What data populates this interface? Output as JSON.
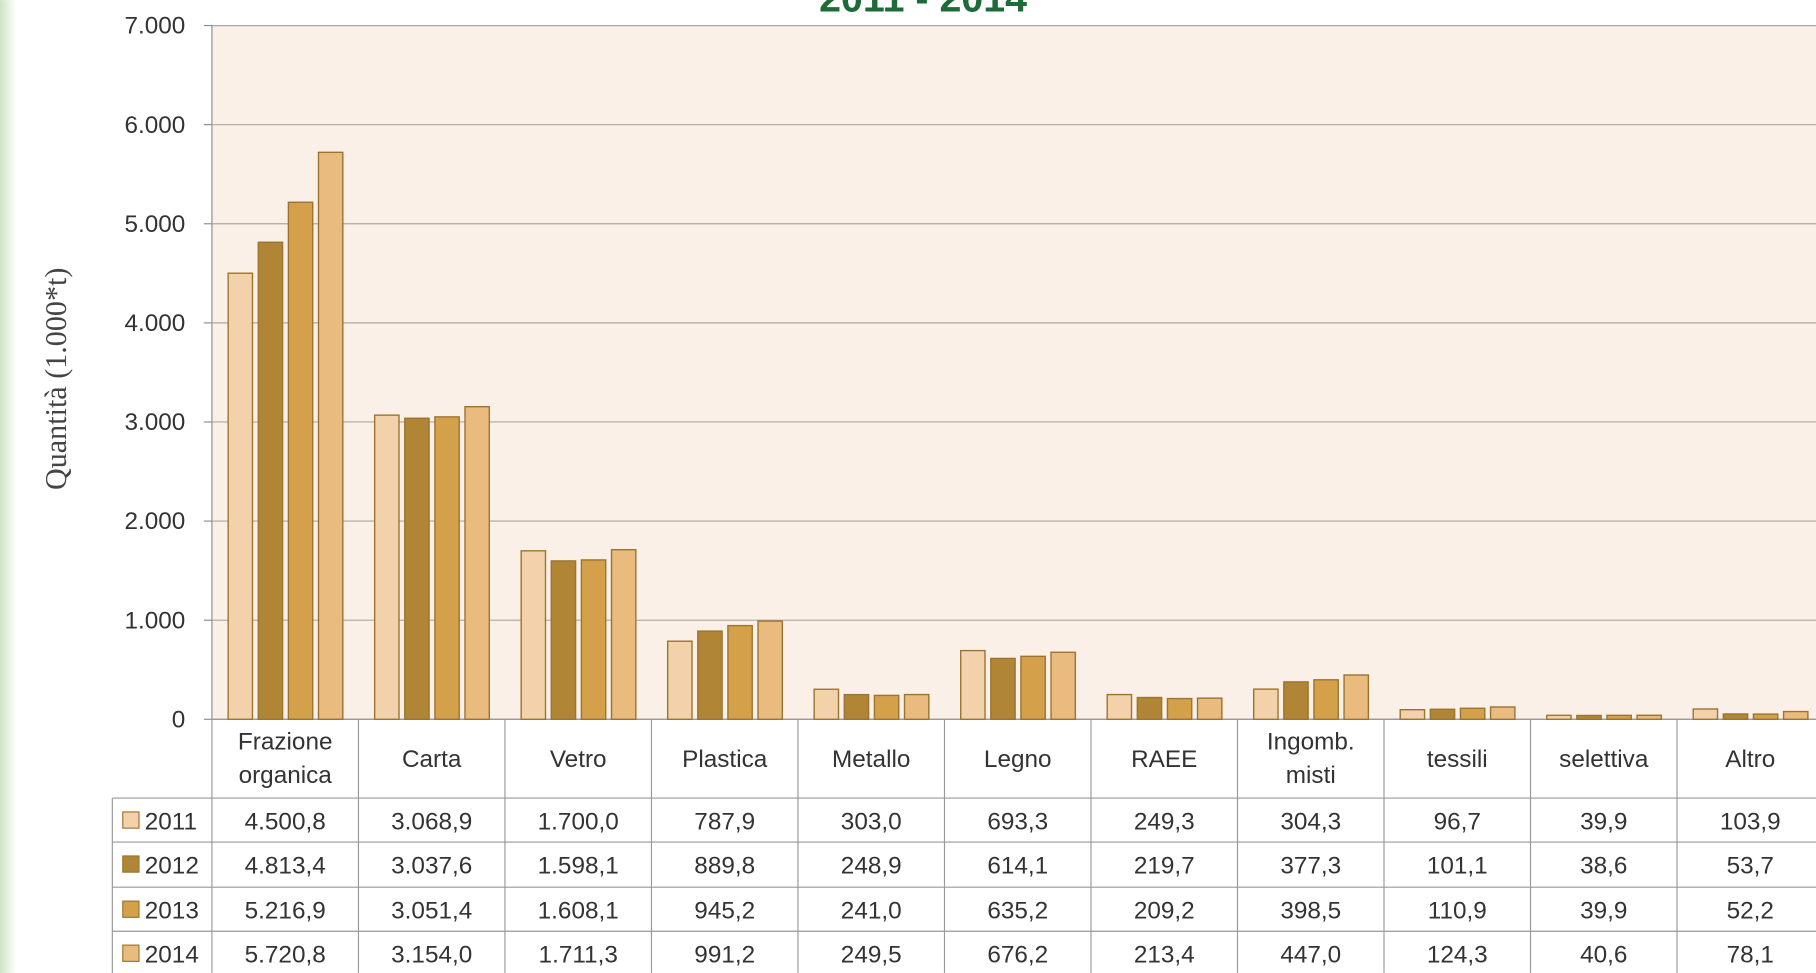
{
  "chart_data": {
    "type": "bar",
    "title": "2011 - 2014",
    "y_label": "Quantità  (1.000*t)",
    "categories": [
      "Frazione organica",
      "Carta",
      "Vetro",
      "Plastica",
      "Metallo",
      "Legno",
      "RAEE",
      "Ingomb. misti",
      "tessili",
      "selettiva",
      "Altro"
    ],
    "series": [
      {
        "name": "2011",
        "color": "#f3d2ab",
        "values": [
          4500.8,
          3068.9,
          1700.0,
          787.9,
          303.0,
          693.3,
          249.3,
          304.3,
          96.7,
          39.9,
          103.9
        ],
        "value_labels": [
          "4.500,8",
          "3.068,9",
          "1.700,0",
          "787,9",
          "303,0",
          "693,3",
          "249,3",
          "304,3",
          "96,7",
          "39,9",
          "103,9"
        ]
      },
      {
        "name": "2012",
        "color": "#b08535",
        "values": [
          4813.4,
          3037.6,
          1598.1,
          889.8,
          248.9,
          614.1,
          219.7,
          377.3,
          101.1,
          38.6,
          53.7
        ],
        "value_labels": [
          "4.813,4",
          "3.037,6",
          "1.598,1",
          "889,8",
          "248,9",
          "614,1",
          "219,7",
          "377,3",
          "101,1",
          "38,6",
          "53,7"
        ]
      },
      {
        "name": "2013",
        "color": "#d4a04a",
        "values": [
          5216.9,
          3051.4,
          1608.1,
          945.2,
          241.0,
          635.2,
          209.2,
          398.5,
          110.9,
          39.9,
          52.2
        ],
        "value_labels": [
          "5.216,9",
          "3.051,4",
          "1.608,1",
          "945,2",
          "241,0",
          "635,2",
          "209,2",
          "398,5",
          "110,9",
          "39,9",
          "52,2"
        ]
      },
      {
        "name": "2014",
        "color": "#e9bb7f",
        "values": [
          5720.8,
          3154.0,
          1711.3,
          991.2,
          249.5,
          676.2,
          213.4,
          447.0,
          124.3,
          40.6,
          78.1
        ],
        "value_labels": [
          "5.720,8",
          "3.154,0",
          "1.711,3",
          "991,2",
          "249,5",
          "676,2",
          "213,4",
          "447,0",
          "124,3",
          "40,6",
          "78,1"
        ]
      }
    ],
    "ylim": [
      0,
      7000
    ],
    "yticks": [
      0,
      {
        "value": 1000,
        "label": "1.000"
      },
      {
        "value": 2000,
        "label": "2.000"
      },
      {
        "value": 3000,
        "label": "3.000"
      },
      {
        "value": 4000,
        "label": "4.000"
      },
      {
        "value": 5000,
        "label": "5.000"
      },
      {
        "value": 6000,
        "label": "6.000"
      },
      {
        "value": 7000,
        "label": "7.000"
      }
    ],
    "grid": true
  }
}
